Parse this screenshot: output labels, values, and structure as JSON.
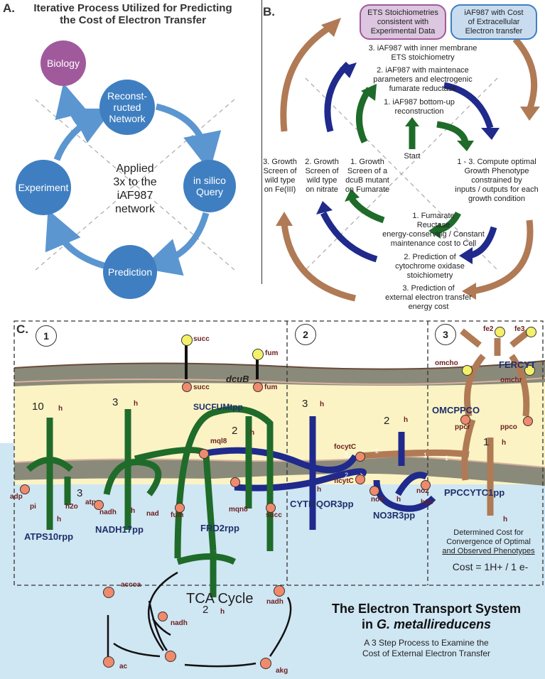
{
  "panelA": {
    "letter": "A.",
    "title_line1": "Iterative Process Utilized for Predicting",
    "title_line2": "the Cost of Electron Transfer",
    "nodes": {
      "biology": "Biology",
      "reconstructed_l1": "Reconst-",
      "reconstructed_l2": "ructed",
      "reconstructed_l3": "Network",
      "insilico_l1": "in silico",
      "insilico_l2": "Query",
      "prediction": "Prediction",
      "experiment": "Experiment"
    },
    "center_l1": "Applied",
    "center_l2": "3x to the",
    "center_l3": "iAF987",
    "center_l4": "network"
  },
  "panelB": {
    "letter": "B.",
    "box_left_l1": "ETS Stoichiometries",
    "box_left_l2": "consistent with",
    "box_left_l3": "Experimental Data",
    "box_right_l1": "iAF987 with Cost",
    "box_right_l2": "of Extracellular",
    "box_right_l3": "Electron transfer",
    "step3_l1": "3. iAF987 with inner membrane",
    "step3_l2": "ETS stoichiometry",
    "step2_l1": "2. iAF987 with maintenace",
    "step2_l2": "parameters and electrogenic",
    "step2_l3": "fumarate reductase",
    "step1_l1": "1. iAF987 bottom-up",
    "step1_l2": "reconstruction",
    "start": "Start",
    "screen3_l1": "3. Growth",
    "screen3_l2": "Screen of",
    "screen3_l3": "wild type",
    "screen3_l4": "on Fe(III)",
    "screen2_l1": "2. Growth",
    "screen2_l2": "Screen of",
    "screen2_l3": "wild type",
    "screen2_l4": "on nitrate",
    "screen1_l1": "1. Growth",
    "screen1_l2": "Screen of a",
    "screen1_l3": "dcuB mutant",
    "screen1_l4": "on Fumarate",
    "compute_l1": "1 - 3. Compute optimal",
    "compute_l2": "Growth Phenotype",
    "compute_l3": "constrained by",
    "compute_l4": "inputs / outputs for each",
    "compute_l5": "growth condition",
    "pred1_l1": "1. Fumarate",
    "pred1_l2": "Reuctase",
    "pred1_l3": "energy-conserving / Constant",
    "pred1_l4": "maintenance cost to Cell",
    "pred2_l1": "2. Prediction of",
    "pred2_l2": "cytochrome oxidase",
    "pred2_l3": "stoichiometry",
    "pred3_l1": "3. Prediction of",
    "pred3_l2": "external electron transfer",
    "pred3_l3": "energy cost"
  },
  "panelC": {
    "letter": "C.",
    "sec1": "1",
    "sec2": "2",
    "sec3": "3",
    "mets": {
      "succ_top": "succ",
      "fum_top": "fum",
      "succ_mem": "succ",
      "fum_mem": "fum",
      "dcub": "dcuB",
      "h": "h",
      "mql8": "mql8",
      "mqn8": "mqn8",
      "adp": "adp",
      "pi": "pi",
      "h2o": "h2o",
      "atp": "atp",
      "nadh": "nadh",
      "nad": "nad",
      "fum": "fum",
      "succ": "succ",
      "focytc": "focytC",
      "ficytc": "ficytC",
      "no3": "no3",
      "no2": "no2",
      "fe2": "fe2",
      "fe3": "fe3",
      "omcho": "omcho",
      "omchr": "omchr",
      "ppcr": "ppcr",
      "ppco": "ppco",
      "accoa": "accoa",
      "akg": "akg",
      "ac": "ac"
    },
    "nums": {
      "n10": "10",
      "n3a": "3",
      "n3b": "3",
      "n2a": "2",
      "n2b": "2",
      "n3c": "3",
      "n2c": "2",
      "n1": "1",
      "e2a": "2",
      "e2b": "2",
      "e2c": "2",
      "e1a": "1",
      "e1b": "1"
    },
    "rxns": {
      "sucfum": "SUCFUMtpp",
      "atps": "ATPS10rpp",
      "nadh17": "NADH17pp",
      "frd2": "FRD2rpp",
      "cytmqor": "CYTMQOR3pp",
      "no3r3": "NO3R3pp",
      "fercyt": "FERCYT",
      "omcppco": "OMCPPCO",
      "ppcytc": "PPCCYTC1pp"
    },
    "cost_l1": "Determined Cost for",
    "cost_l2": "Convergence of Optimal",
    "cost_l3": "and Observed Phenotypes",
    "cost_eq": "Cost = 1H+ / 1 e-",
    "tca": "TCA Cycle",
    "title_l1": "The Electron Transport System",
    "title_l2_pre": "in ",
    "title_l2_it": "G. metallireducens",
    "sub_l1": "A 3 Step Process to Examine the",
    "sub_l2": "Cost of External Electron Transfer"
  },
  "colors": {
    "blue": "#3f7fc1",
    "purple": "#a05a9c",
    "brown": "#b07a55",
    "green": "#1f6b2a",
    "navy": "#1f2a8c",
    "membrane": "#8a8a7a",
    "periplasm": "#fbf3c4",
    "cytoplasm": "#cfe6f3",
    "metabolite": "#f08a6c",
    "extracellular": "#f4f06a"
  }
}
